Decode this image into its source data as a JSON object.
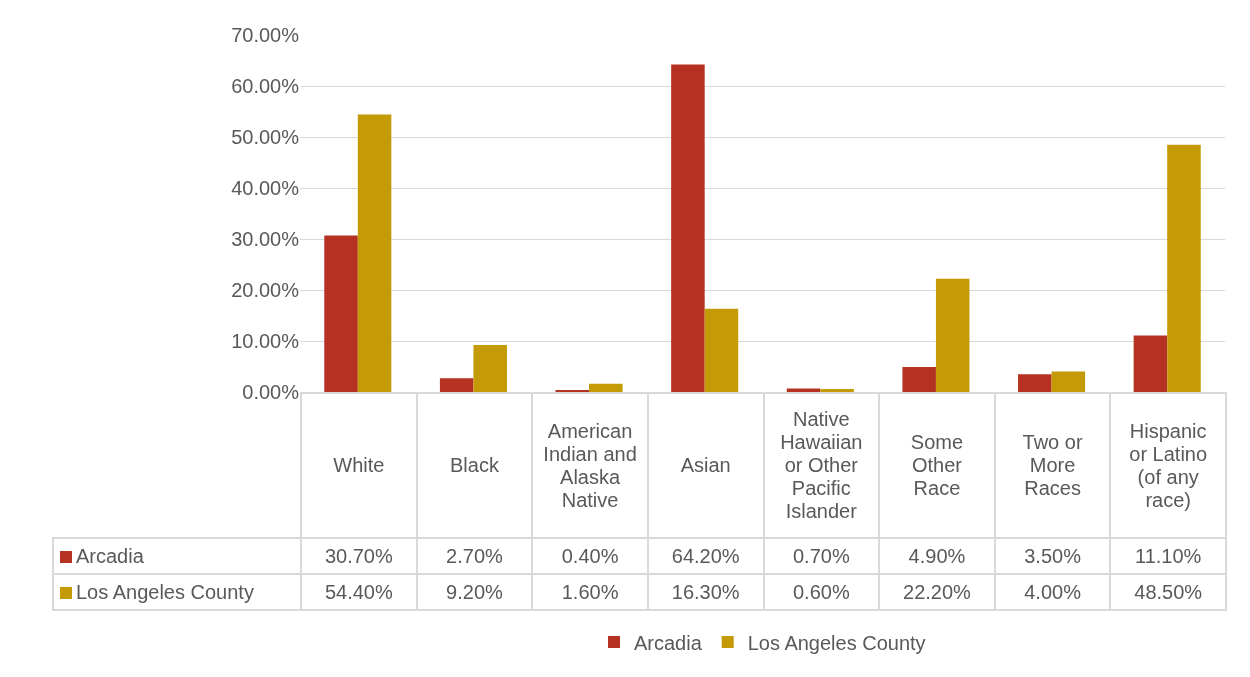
{
  "chart_data": {
    "type": "bar",
    "categories": [
      "White",
      "Black",
      "American Indian and Alaska Native",
      "Asian",
      "Native Hawaiian or Other Pacific Islander",
      "Some Other Race",
      "Two or More Races",
      "Hispanic or Latino (of any race)"
    ],
    "series": [
      {
        "name": "Arcadia",
        "color": "#b53121",
        "values": [
          30.7,
          2.7,
          0.4,
          64.2,
          0.7,
          4.9,
          3.5,
          11.1
        ],
        "value_labels": [
          "30.70%",
          "2.70%",
          "0.40%",
          "64.20%",
          "0.70%",
          "4.90%",
          "3.50%",
          "11.10%"
        ]
      },
      {
        "name": "Los Angeles County",
        "color": "#c49a07",
        "values": [
          54.4,
          9.2,
          1.6,
          16.3,
          0.6,
          22.2,
          4.0,
          48.5
        ],
        "value_labels": [
          "54.40%",
          "9.20%",
          "1.60%",
          "16.30%",
          "0.60%",
          "22.20%",
          "4.00%",
          "48.50%"
        ]
      }
    ],
    "ylim": [
      0,
      70
    ],
    "yticks": [
      {
        "value": 0,
        "label": "0.00%"
      },
      {
        "value": 10,
        "label": "10.00%"
      },
      {
        "value": 20,
        "label": "20.00%"
      },
      {
        "value": 30,
        "label": "30.00%"
      },
      {
        "value": 40,
        "label": "40.00%"
      },
      {
        "value": 50,
        "label": "50.00%"
      },
      {
        "value": 60,
        "label": "60.00%"
      },
      {
        "value": 70,
        "label": "70.00%"
      }
    ],
    "grid": "y",
    "legend": "bottom"
  }
}
